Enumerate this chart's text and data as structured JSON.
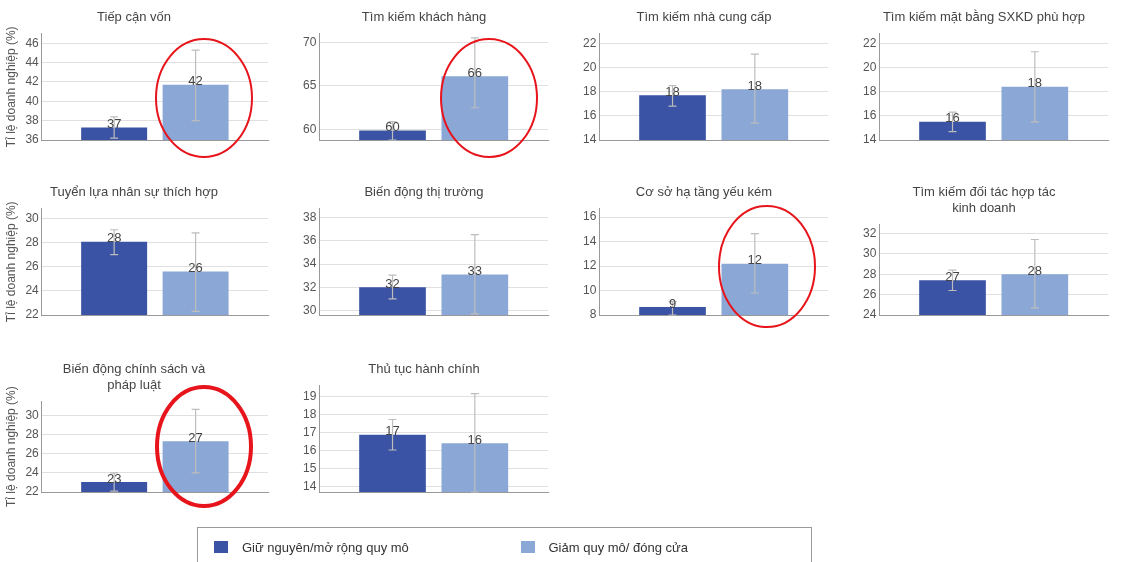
{
  "chart_data": [
    {
      "type": "bar",
      "title": "Tiếp cận vốn",
      "ylabel": "Tỉ lệ doanh nghiệp (%)",
      "categories": [
        null
      ],
      "ylim": [
        36,
        47
      ],
      "yticks": [
        36,
        38,
        40,
        42,
        44,
        46
      ],
      "grid": "y",
      "legend": "bottom",
      "series": [
        {
          "name": "Giữ nguyên/mở rộng quy mô",
          "color": "#3a53a4",
          "values": [
            37.3
          ],
          "errors": [
            [
              36.2,
              38.4
            ]
          ],
          "value_labels": [
            "37"
          ]
        },
        {
          "name": "Giảm quy mô/ đóng cửa",
          "color": "#8aa7d6",
          "values": [
            41.7
          ],
          "errors": [
            [
              38.0,
              45.3
            ]
          ],
          "value_labels": [
            "42"
          ]
        }
      ]
    },
    {
      "type": "bar",
      "title": "Tìm kiếm khách hàng",
      "categories": [
        null
      ],
      "ylim": [
        58.8,
        71
      ],
      "yticks": [
        60,
        65,
        70
      ],
      "grid": "y",
      "series": [
        {
          "color": "#3a53a4",
          "values": [
            59.9
          ],
          "errors": [
            [
              58.8,
              60.9
            ]
          ],
          "value_labels": [
            "60"
          ]
        },
        {
          "color": "#8aa7d6",
          "values": [
            66.1
          ],
          "errors": [
            [
              62.5,
              70.5
            ]
          ],
          "value_labels": [
            "66"
          ]
        }
      ]
    },
    {
      "type": "bar",
      "title": "Tìm kiếm nhà cung cấp",
      "categories": [
        null
      ],
      "ylim": [
        14,
        22.8
      ],
      "yticks": [
        14,
        16,
        18,
        20,
        22
      ],
      "grid": "y",
      "series": [
        {
          "color": "#3a53a4",
          "values": [
            17.7
          ],
          "errors": [
            [
              16.8,
              18.5
            ]
          ],
          "value_labels": [
            "18"
          ]
        },
        {
          "color": "#8aa7d6",
          "values": [
            18.2
          ],
          "errors": [
            [
              15.4,
              21.1
            ]
          ],
          "value_labels": [
            "18"
          ]
        }
      ]
    },
    {
      "type": "bar",
      "title": "Tìm kiếm mặt bằng SXKD phù hợp",
      "categories": [
        null
      ],
      "ylim": [
        14,
        22.8
      ],
      "yticks": [
        14,
        16,
        18,
        20,
        22
      ],
      "grid": "y",
      "series": [
        {
          "color": "#3a53a4",
          "values": [
            15.5
          ],
          "errors": [
            [
              14.7,
              16.3
            ]
          ],
          "value_labels": [
            "16"
          ]
        },
        {
          "color": "#8aa7d6",
          "values": [
            18.4
          ],
          "errors": [
            [
              15.5,
              21.3
            ]
          ],
          "value_labels": [
            "18"
          ]
        }
      ]
    },
    {
      "type": "bar",
      "title": "Tuyển lựa nhân sự thích hợp",
      "ylabel": "Tỉ lệ doanh nghiệp (%)",
      "categories": [
        null
      ],
      "ylim": [
        22,
        30.8
      ],
      "yticks": [
        22,
        24,
        26,
        28,
        30
      ],
      "grid": "y",
      "series": [
        {
          "color": "#3a53a4",
          "values": [
            28.05
          ],
          "errors": [
            [
              27.0,
              29.05
            ]
          ],
          "value_labels": [
            "28"
          ]
        },
        {
          "color": "#8aa7d6",
          "values": [
            25.6
          ],
          "errors": [
            [
              22.3,
              28.8
            ]
          ],
          "value_labels": [
            "26"
          ]
        }
      ]
    },
    {
      "type": "bar",
      "title": "Biến động thị trường",
      "categories": [
        null
      ],
      "ylim": [
        29.6,
        38.8
      ],
      "yticks": [
        30,
        32,
        34,
        36,
        38
      ],
      "grid": "y",
      "series": [
        {
          "color": "#3a53a4",
          "values": [
            32.0
          ],
          "errors": [
            [
              31.0,
              33.05
            ]
          ],
          "value_labels": [
            "32"
          ]
        },
        {
          "color": "#8aa7d6",
          "values": [
            33.1
          ],
          "errors": [
            [
              29.7,
              36.55
            ]
          ],
          "value_labels": [
            "33"
          ]
        }
      ]
    },
    {
      "type": "bar",
      "title": "Cơ sở hạ tầng yếu kém",
      "categories": [
        null
      ],
      "ylim": [
        8,
        16.7
      ],
      "yticks": [
        8,
        10,
        12,
        14,
        16
      ],
      "grid": "y",
      "series": [
        {
          "color": "#3a53a4",
          "values": [
            8.65
          ],
          "errors": [
            [
              8.0,
              9.1
            ]
          ],
          "value_labels": [
            "9"
          ]
        },
        {
          "color": "#8aa7d6",
          "values": [
            12.2
          ],
          "errors": [
            [
              9.8,
              14.65
            ]
          ],
          "value_labels": [
            "12"
          ]
        }
      ]
    },
    {
      "type": "bar",
      "title": "Tìm kiếm đối tác hợp tác\nkinh doanh",
      "categories": [
        null
      ],
      "ylim": [
        24,
        32.9
      ],
      "yticks": [
        24,
        26,
        28,
        30,
        32
      ],
      "grid": "y",
      "series": [
        {
          "color": "#3a53a4",
          "values": [
            27.4
          ],
          "errors": [
            [
              26.4,
              28.4
            ]
          ],
          "value_labels": [
            "27"
          ]
        },
        {
          "color": "#8aa7d6",
          "values": [
            28.0
          ],
          "errors": [
            [
              24.7,
              31.4
            ]
          ],
          "value_labels": [
            "28"
          ]
        }
      ]
    },
    {
      "type": "bar",
      "title": "Biến động chính sách và\npháp luật",
      "ylabel": "Tỉ lệ doanh nghiệp (%)",
      "categories": [
        null
      ],
      "ylim": [
        22,
        31.5
      ],
      "yticks": [
        22,
        24,
        26,
        28,
        30
      ],
      "grid": "y",
      "series": [
        {
          "color": "#3a53a4",
          "values": [
            23.05
          ],
          "errors": [
            [
              22.1,
              24.0
            ]
          ],
          "value_labels": [
            "23"
          ]
        },
        {
          "color": "#8aa7d6",
          "values": [
            27.3
          ],
          "errors": [
            [
              24.0,
              30.65
            ]
          ],
          "value_labels": [
            "27"
          ]
        }
      ]
    },
    {
      "type": "bar",
      "title": "Thủ tục hành chính",
      "categories": [
        null
      ],
      "ylim": [
        13.7,
        19.6
      ],
      "yticks": [
        14,
        15,
        16,
        17,
        18,
        19
      ],
      "grid": "y",
      "series": [
        {
          "color": "#3a53a4",
          "values": [
            16.87
          ],
          "errors": [
            [
              16.03,
              17.72
            ]
          ],
          "value_labels": [
            "17"
          ]
        },
        {
          "color": "#8aa7d6",
          "values": [
            16.4
          ],
          "errors": [
            [
              13.7,
              19.15
            ]
          ],
          "value_labels": [
            "16"
          ]
        }
      ]
    }
  ]
}
